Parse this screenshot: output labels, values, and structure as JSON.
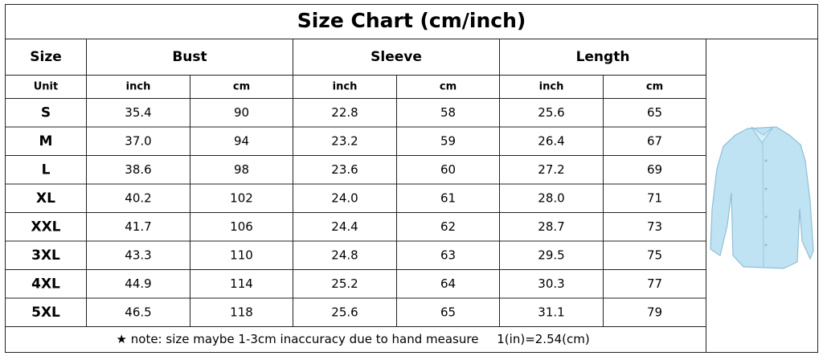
{
  "title": "Size Chart (cm/inch)",
  "header": {
    "size": "Size",
    "groups": [
      "Bust",
      "Sleeve",
      "Length"
    ]
  },
  "unit_row": {
    "label": "Unit",
    "units": [
      "inch",
      "cm",
      "inch",
      "cm",
      "inch",
      "cm"
    ]
  },
  "rows": [
    [
      "S",
      "35.4",
      "90",
      "22.8",
      "58",
      "25.6",
      "65"
    ],
    [
      "M",
      "37.0",
      "94",
      "23.2",
      "59",
      "26.4",
      "67"
    ],
    [
      "L",
      "38.6",
      "98",
      "23.6",
      "60",
      "27.2",
      "69"
    ],
    [
      "XL",
      "40.2",
      "102",
      "24.0",
      "61",
      "28.0",
      "71"
    ],
    [
      "XXL",
      "41.7",
      "106",
      "24.4",
      "62",
      "28.7",
      "73"
    ],
    [
      "3XL",
      "43.3",
      "110",
      "24.8",
      "63",
      "29.5",
      "75"
    ],
    [
      "4XL",
      "44.9",
      "114",
      "25.2",
      "64",
      "30.3",
      "77"
    ],
    [
      "5XL",
      "46.5",
      "118",
      "25.6",
      "65",
      "31.1",
      "79"
    ]
  ],
  "note": "★ note: size maybe 1-3cm inaccuracy due to hand measure",
  "conversion": "1(in)=2.54(cm)"
}
